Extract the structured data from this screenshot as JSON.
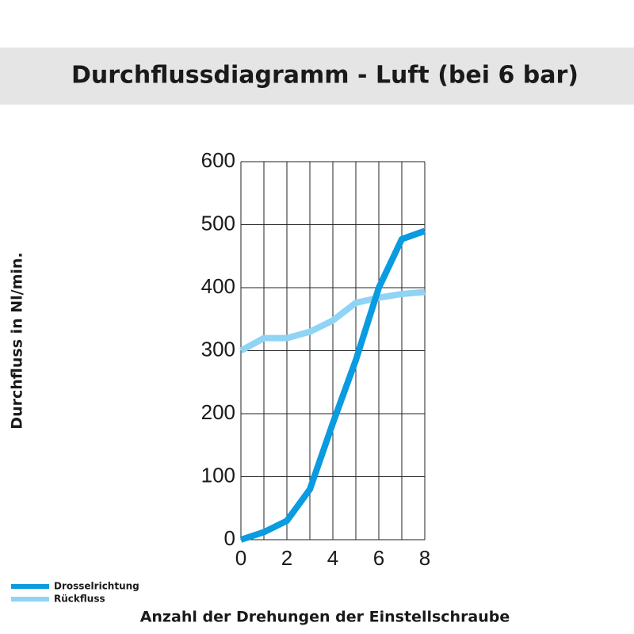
{
  "chart_data": {
    "type": "line",
    "title": "Durchflussdiagramm - Luft (bei 6 bar)",
    "x_label": "Anzahl der Drehungen der Einstellschraube",
    "y_label": "Durchfluss in Nl/min.",
    "x": [
      0,
      1,
      2,
      3,
      4,
      5,
      6,
      7,
      8
    ],
    "series": [
      {
        "name": "Drosselrichtung",
        "color": "#0a9be0",
        "values": [
          0,
          12,
          30,
          80,
          185,
          285,
          400,
          477,
          490
        ]
      },
      {
        "name": "Rückfluss",
        "color": "#8fd3f5",
        "values": [
          300,
          320,
          320,
          330,
          348,
          376,
          384,
          390,
          393
        ]
      }
    ],
    "xlim": [
      0,
      8
    ],
    "xticks": [
      0,
      2,
      4,
      6,
      8
    ],
    "xminor": [
      1,
      3,
      5,
      7
    ],
    "ylim": [
      0,
      600
    ],
    "yticks": [
      0,
      100,
      200,
      300,
      400,
      500,
      600
    ],
    "grid": true,
    "legend": "bottom-left"
  }
}
